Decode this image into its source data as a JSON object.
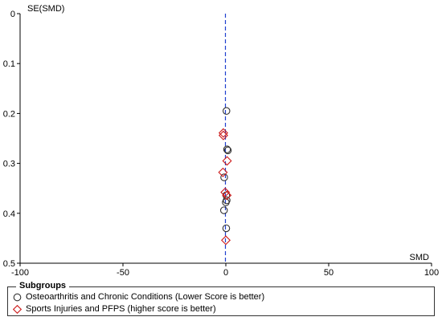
{
  "chart_data": {
    "type": "scatter",
    "xlabel": "SMD",
    "ylabel": "SE(SMD)",
    "xlim": [
      -100,
      100
    ],
    "ylim": [
      0,
      0.5
    ],
    "y_inverted": true,
    "xticks": [
      "-100",
      "-50",
      "0",
      "50",
      "100"
    ],
    "yticks": [
      "0",
      "0.1",
      "0.2",
      "0.3",
      "0.4",
      "0.5"
    ],
    "reference_line": {
      "x": 0,
      "style": "dashed",
      "color": "#1f3fcf"
    },
    "legend": {
      "title": "Subgroups",
      "placement": "bottom",
      "entries": [
        {
          "label": "Osteoarthritis and Chronic Conditions (Lower Score is better)",
          "marker": "circle",
          "color": "#333333"
        },
        {
          "label": "Sports Injuries and PFPS (higher score is better)",
          "marker": "diamond",
          "color": "#cc1a1a"
        }
      ]
    },
    "series": [
      {
        "marker": "circle",
        "color": "#333333",
        "points": [
          {
            "x": 0.3,
            "y": 0.195
          },
          {
            "x": 0.6,
            "y": 0.272
          },
          {
            "x": 1.0,
            "y": 0.274
          },
          {
            "x": -0.8,
            "y": 0.328
          },
          {
            "x": 0.2,
            "y": 0.364
          },
          {
            "x": 0.4,
            "y": 0.374
          },
          {
            "x": 0.0,
            "y": 0.378
          },
          {
            "x": -0.9,
            "y": 0.394
          },
          {
            "x": 0.2,
            "y": 0.43
          }
        ]
      },
      {
        "marker": "diamond",
        "color": "#cc1a1a",
        "points": [
          {
            "x": -1.2,
            "y": 0.239
          },
          {
            "x": -1.2,
            "y": 0.244
          },
          {
            "x": 0.6,
            "y": 0.295
          },
          {
            "x": -1.4,
            "y": 0.318
          },
          {
            "x": -0.3,
            "y": 0.358
          },
          {
            "x": 0.5,
            "y": 0.364
          },
          {
            "x": 0.0,
            "y": 0.454
          }
        ]
      }
    ]
  }
}
